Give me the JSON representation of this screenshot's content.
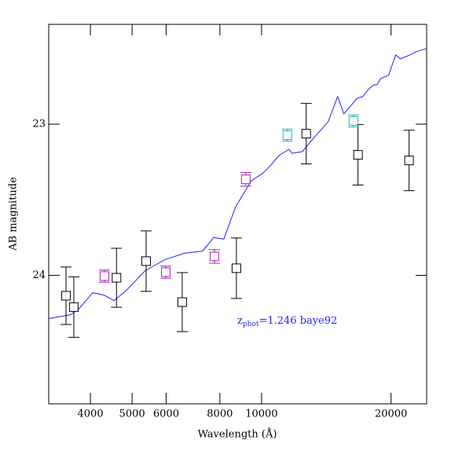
{
  "chart_data": {
    "type": "scatter",
    "x_label": "Wavelength (Å)",
    "y_label": "AB magnitude",
    "annotation": {
      "main": "z",
      "subscript": "phot",
      "rest": "=1.246 baye92",
      "color": "#2020ff"
    },
    "x_scale": "log",
    "xlim": [
      3200,
      24200
    ],
    "ylim": [
      24.85,
      22.34
    ],
    "xticks": [
      4000,
      5000,
      6000,
      8000,
      10000,
      20000
    ],
    "yticks": [
      23,
      24
    ],
    "series": [
      {
        "mode": "line",
        "color": "#2020ff",
        "x": [
          3200,
          3600,
          3755,
          4050,
          4300,
          4538,
          4833,
          5366,
          5962,
          6622,
          7295,
          7736,
          8172,
          8702,
          9465,
          10080,
          10512,
          10965,
          11580,
          11776,
          12436,
          13252,
          14289,
          15025,
          15538,
          16688,
          17186,
          17774,
          18229,
          18535,
          18930,
          19740,
          20503,
          21024,
          21930,
          22870,
          24150
        ],
        "values": [
          24.286,
          24.26,
          24.224,
          24.115,
          24.13,
          24.167,
          24.104,
          23.969,
          23.896,
          23.854,
          23.839,
          23.75,
          23.76,
          23.547,
          23.375,
          23.323,
          23.271,
          23.208,
          23.167,
          23.193,
          23.182,
          23.089,
          22.984,
          22.818,
          22.932,
          22.828,
          22.818,
          22.766,
          22.74,
          22.74,
          22.698,
          22.677,
          22.542,
          22.568,
          22.547,
          22.521,
          22.5
        ]
      },
      {
        "mode": "markers",
        "color": "#000000",
        "x": [
          3510,
          3660,
          4600,
          5390,
          6540,
          8740,
          12700,
          16760,
          22030
        ],
        "values": [
          24.135,
          24.21,
          24.016,
          23.906,
          24.177,
          23.953,
          23.063,
          23.203,
          23.24
        ],
        "errors": [
          0.19,
          0.2,
          0.195,
          0.2,
          0.195,
          0.2,
          0.2,
          0.2,
          0.2
        ]
      },
      {
        "mode": "markers",
        "color": "#a020b0",
        "x": [
          4313,
          5990,
          7770,
          9190
        ],
        "values": [
          24.005,
          23.979,
          23.875,
          23.365
        ],
        "errors": [
          0.04,
          0.04,
          0.045,
          0.045
        ]
      },
      {
        "mode": "markers",
        "color": "#20b0b0",
        "x": [
          11480,
          16350
        ],
        "values": [
          23.073,
          22.979
        ],
        "errors": [
          0.04,
          0.04
        ]
      }
    ]
  }
}
